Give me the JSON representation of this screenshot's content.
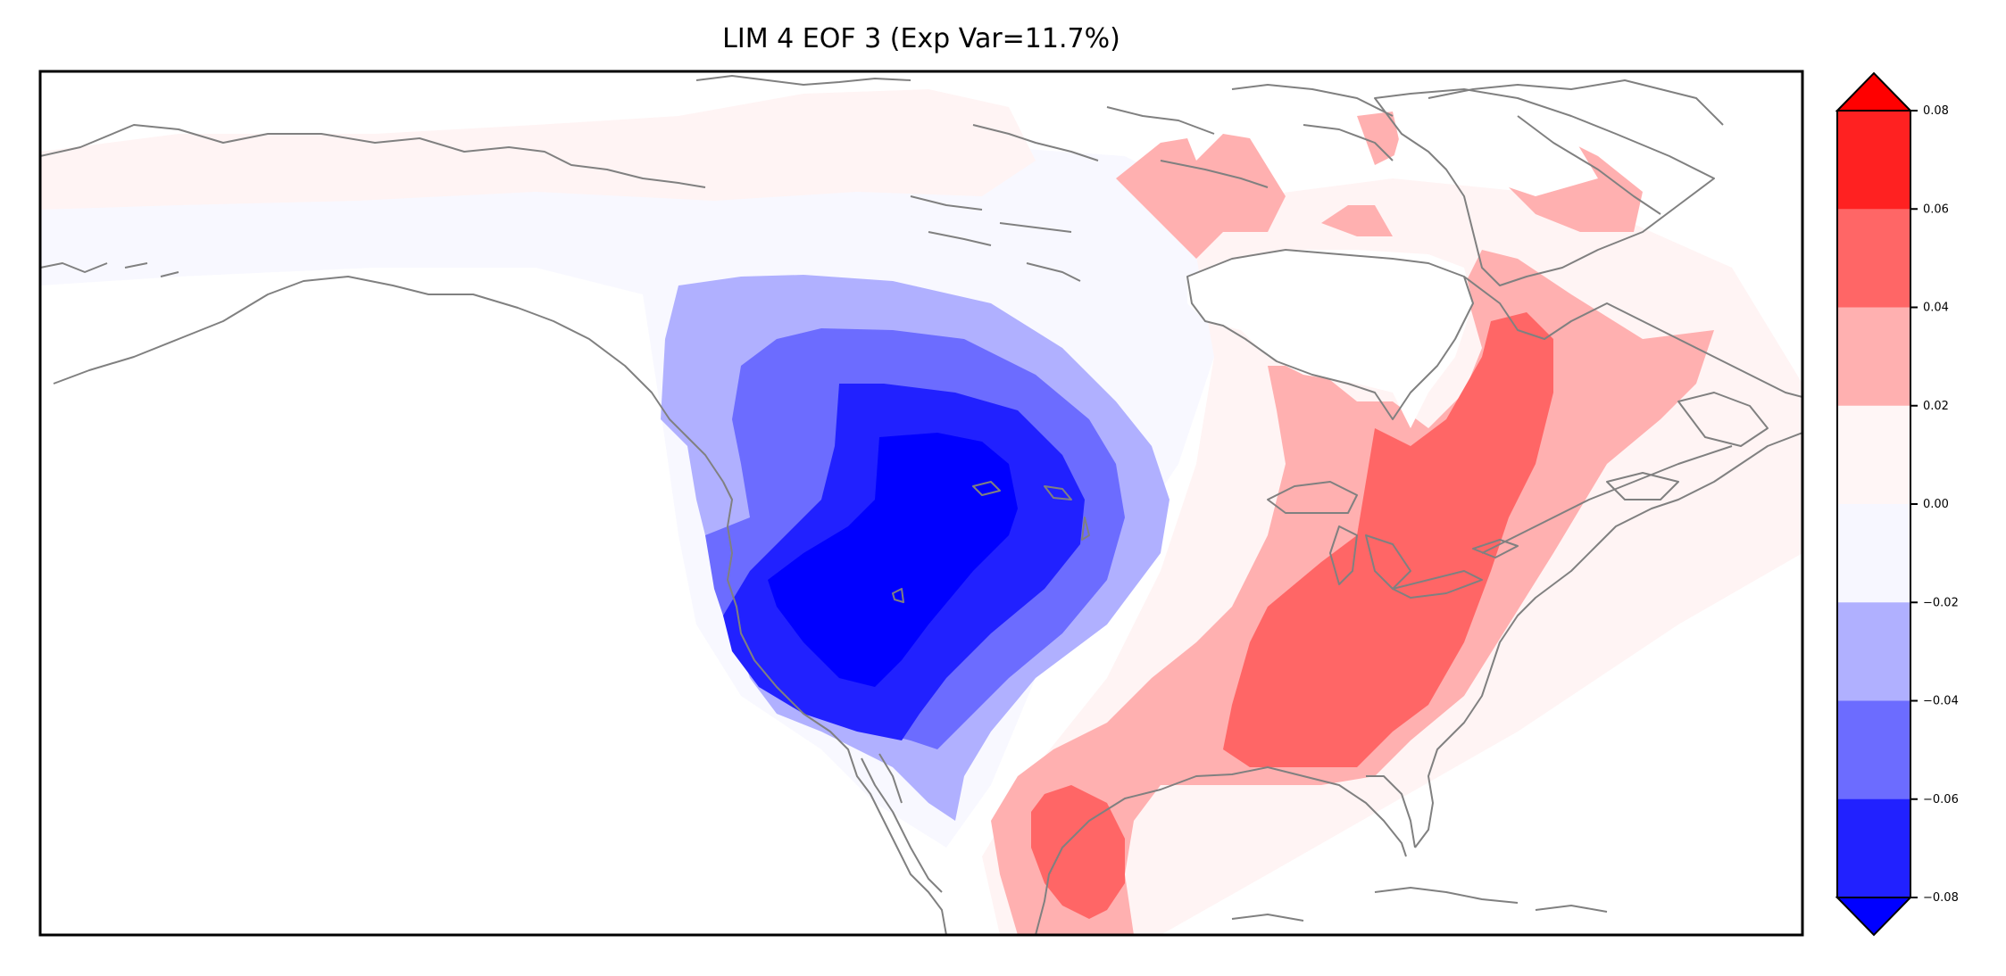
{
  "title": "LIM 4 EOF 3 (Exp Var=11.7%)",
  "colorbar": {
    "ticks": [
      "0.08",
      "0.06",
      "0.04",
      "0.02",
      "0.00",
      "−0.02",
      "−0.04",
      "−0.06",
      "−0.08"
    ],
    "bins": [
      {
        "range": "0.06 to 0.08",
        "color": "#ff2121"
      },
      {
        "range": "0.04 to 0.06",
        "color": "#ff6666"
      },
      {
        "range": "0.02 to 0.04",
        "color": "#ffb0b0"
      },
      {
        "range": "0.00 to 0.02",
        "color": "#fff6f6"
      },
      {
        "range": "-0.02 to 0.00",
        "color": "#f7f7ff"
      },
      {
        "range": "-0.04 to -0.02",
        "color": "#b0b0ff"
      },
      {
        "range": "-0.06 to -0.04",
        "color": "#6c6cff"
      },
      {
        "range": "-0.08 to -0.06",
        "color": "#2121ff"
      }
    ],
    "extend_max_color": "#ff0000",
    "extend_min_color": "#0000ff"
  },
  "map": {
    "region": "North America",
    "coastline_color": "#808080",
    "frame_color": "#000000",
    "fields": {
      "west_negative_min": "< -0.08",
      "great_lakes_positive_max": "0.04 to 0.06",
      "gulf_positive_max": "0.04 to 0.06",
      "greenland_positive_max": "0.02 to 0.04"
    }
  }
}
